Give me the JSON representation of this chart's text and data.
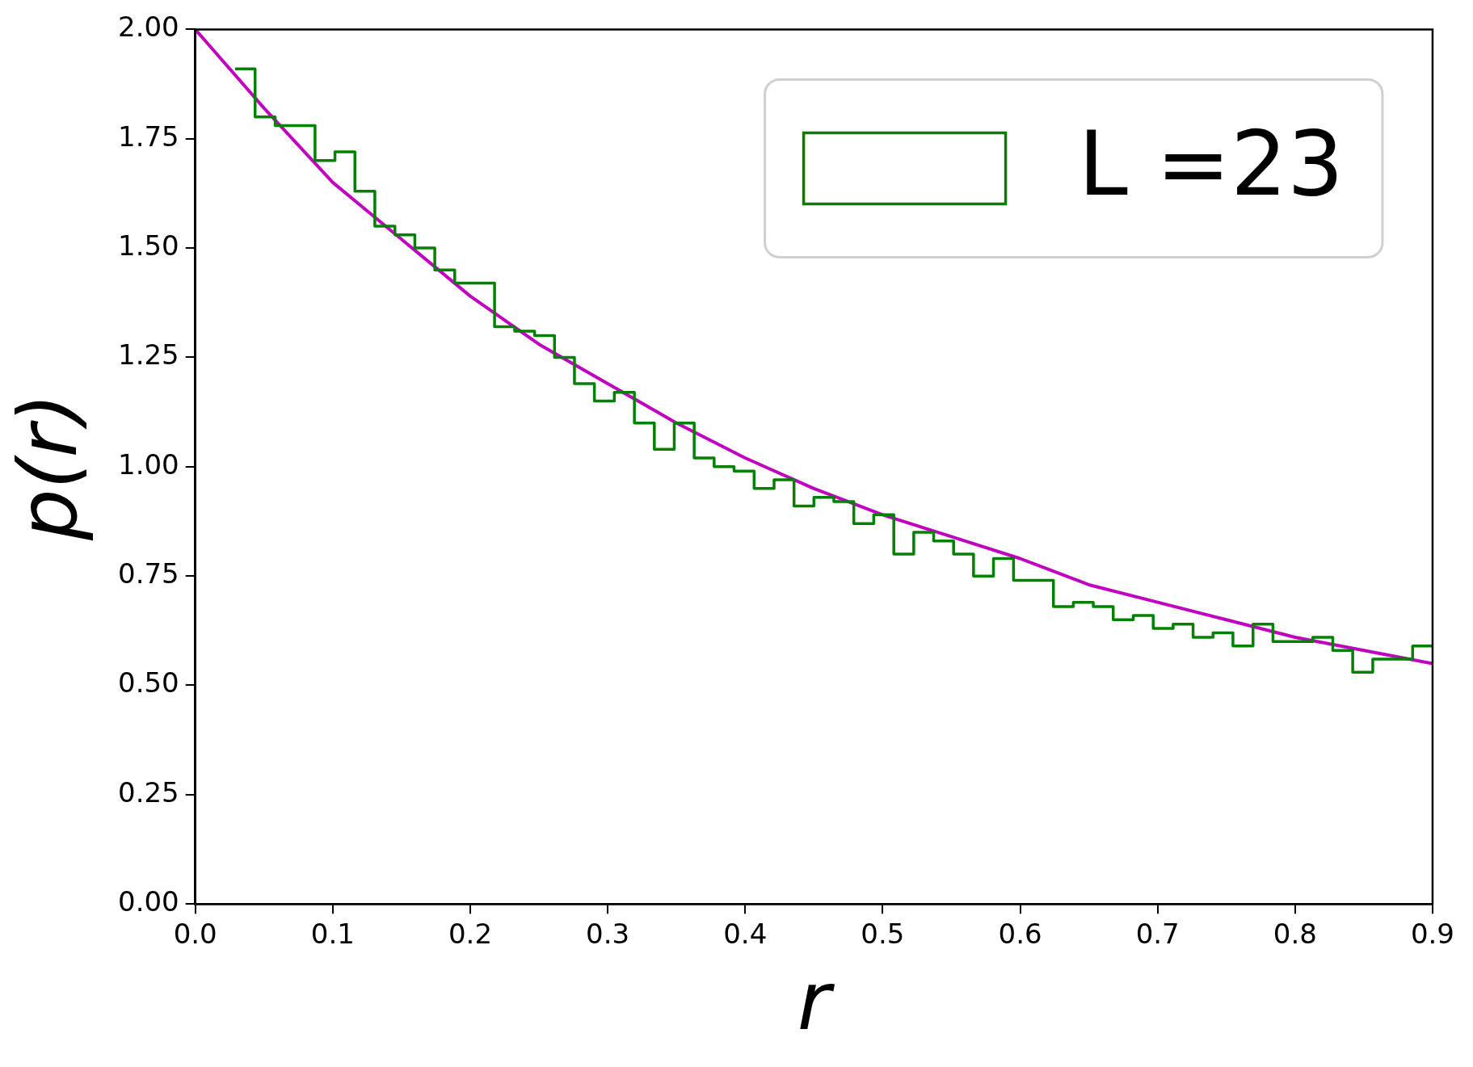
{
  "chart_data": {
    "type": "histogram",
    "xlabel": "r",
    "ylabel": "p(r)",
    "xlim": [
      0,
      0.9
    ],
    "ylim": [
      0,
      2
    ],
    "xticks": [
      {
        "value": 0,
        "label": "0.0"
      },
      {
        "value": 0.1,
        "label": "0.1"
      },
      {
        "value": 0.2,
        "label": "0.2"
      },
      {
        "value": 0.3,
        "label": "0.3"
      },
      {
        "value": 0.4,
        "label": "0.4"
      },
      {
        "value": 0.5,
        "label": "0.5"
      },
      {
        "value": 0.6,
        "label": "0.6"
      },
      {
        "value": 0.7,
        "label": "0.7"
      },
      {
        "value": 0.8,
        "label": "0.8"
      },
      {
        "value": 0.9,
        "label": "0.9"
      }
    ],
    "yticks": [
      {
        "value": 0,
        "label": "0.00"
      },
      {
        "value": 0.25,
        "label": "0.25"
      },
      {
        "value": 0.5,
        "label": "0.50"
      },
      {
        "value": 0.75,
        "label": "0.75"
      },
      {
        "value": 1,
        "label": "1.00"
      },
      {
        "value": 1.25,
        "label": "1.25"
      },
      {
        "value": 1.5,
        "label": "1.50"
      },
      {
        "value": 1.75,
        "label": "1.75"
      },
      {
        "value": 2,
        "label": "2.00"
      }
    ],
    "grid": false,
    "legend": "top right",
    "series": [
      {
        "name": "L =23",
        "type": "histogram",
        "color": "#008000",
        "bins": [
          0.029,
          0.0435,
          0.0581,
          0.0726,
          0.0871,
          0.1016,
          0.1161,
          0.1306,
          0.1452,
          0.1597,
          0.1742,
          0.1887,
          0.2032,
          0.2177,
          0.2323,
          0.2468,
          0.2613,
          0.2758,
          0.2903,
          0.3048,
          0.3194,
          0.3339,
          0.3484,
          0.3629,
          0.3774,
          0.3919,
          0.4065,
          0.421,
          0.4355,
          0.45,
          0.4645,
          0.479,
          0.4935,
          0.5081,
          0.5226,
          0.5371,
          0.5516,
          0.5661,
          0.5806,
          0.5952,
          0.6097,
          0.6242,
          0.6387,
          0.6532,
          0.6677,
          0.6823,
          0.6968,
          0.7113,
          0.7258,
          0.7403,
          0.7548,
          0.7694,
          0.7839,
          0.7984,
          0.8129,
          0.8274,
          0.8419,
          0.8565,
          0.871,
          0.8855,
          0.9
        ],
        "values": [
          1.91,
          1.8,
          1.78,
          1.78,
          1.7,
          1.72,
          1.63,
          1.55,
          1.53,
          1.5,
          1.45,
          1.42,
          1.42,
          1.32,
          1.31,
          1.3,
          1.25,
          1.19,
          1.15,
          1.17,
          1.1,
          1.04,
          1.1,
          1.02,
          1.0,
          0.99,
          0.95,
          0.97,
          0.91,
          0.93,
          0.92,
          0.87,
          0.89,
          0.8,
          0.85,
          0.83,
          0.8,
          0.75,
          0.79,
          0.74,
          0.74,
          0.68,
          0.69,
          0.68,
          0.65,
          0.66,
          0.63,
          0.64,
          0.61,
          0.62,
          0.59,
          0.64,
          0.6,
          0.6,
          0.61,
          0.58,
          0.53,
          0.56,
          0.56,
          0.59
        ]
      },
      {
        "type": "line",
        "color": "#bf00bf",
        "x": [
          0,
          0.05,
          0.1,
          0.15,
          0.2,
          0.25,
          0.3,
          0.35,
          0.4,
          0.45,
          0.5,
          0.55,
          0.6,
          0.65,
          0.7,
          0.75,
          0.8,
          0.85,
          0.9
        ],
        "values": [
          2.0,
          1.82,
          1.65,
          1.52,
          1.39,
          1.28,
          1.19,
          1.1,
          1.02,
          0.95,
          0.89,
          0.84,
          0.79,
          0.73,
          0.69,
          0.65,
          0.61,
          0.58,
          0.55
        ]
      }
    ]
  }
}
